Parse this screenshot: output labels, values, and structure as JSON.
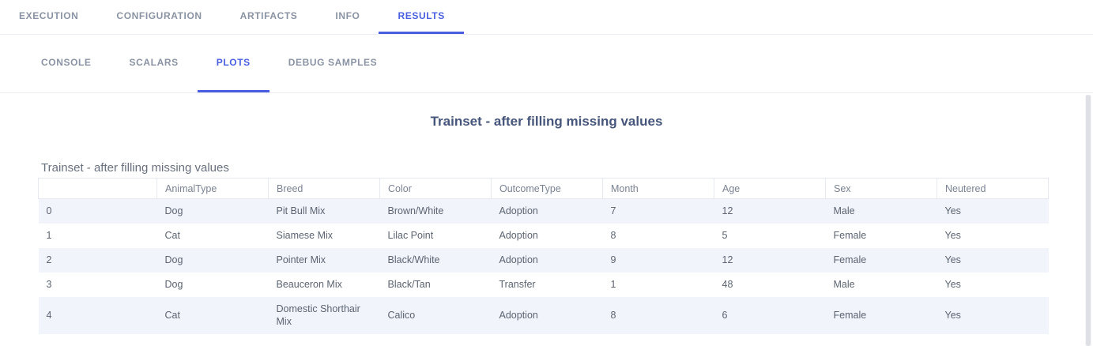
{
  "colors": {
    "accent": "#4a5fe0",
    "tab_inactive": "#8a93a3",
    "row_alt_bg": "#f2f4fc"
  },
  "nav_tabs": {
    "items": [
      {
        "label": "EXECUTION",
        "active": false
      },
      {
        "label": "CONFIGURATION",
        "active": false
      },
      {
        "label": "ARTIFACTS",
        "active": false
      },
      {
        "label": "INFO",
        "active": false
      },
      {
        "label": "RESULTS",
        "active": true
      }
    ]
  },
  "sub_tabs": {
    "items": [
      {
        "label": "CONSOLE",
        "active": false
      },
      {
        "label": "SCALARS",
        "active": false
      },
      {
        "label": "PLOTS",
        "active": true
      },
      {
        "label": "DEBUG SAMPLES",
        "active": false
      }
    ]
  },
  "plot": {
    "title": "Trainset - after filling missing values",
    "table_title": "Trainset - after filling missing values"
  },
  "chart_data": {
    "type": "table",
    "title": "Trainset - after filling missing values",
    "columns": [
      "",
      "AnimalType",
      "Breed",
      "Color",
      "OutcomeType",
      "Month",
      "Age",
      "Sex",
      "Neutered"
    ],
    "rows": [
      [
        "0",
        "Dog",
        "Pit Bull Mix",
        "Brown/White",
        "Adoption",
        "7",
        "12",
        "Male",
        "Yes"
      ],
      [
        "1",
        "Cat",
        "Siamese Mix",
        "Lilac Point",
        "Adoption",
        "8",
        "5",
        "Female",
        "Yes"
      ],
      [
        "2",
        "Dog",
        "Pointer Mix",
        "Black/White",
        "Adoption",
        "9",
        "12",
        "Female",
        "Yes"
      ],
      [
        "3",
        "Dog",
        "Beauceron Mix",
        "Black/Tan",
        "Transfer",
        "1",
        "48",
        "Male",
        "Yes"
      ],
      [
        "4",
        "Cat",
        "Domestic Shorthair Mix",
        "Calico",
        "Adoption",
        "8",
        "6",
        "Female",
        "Yes"
      ]
    ]
  }
}
